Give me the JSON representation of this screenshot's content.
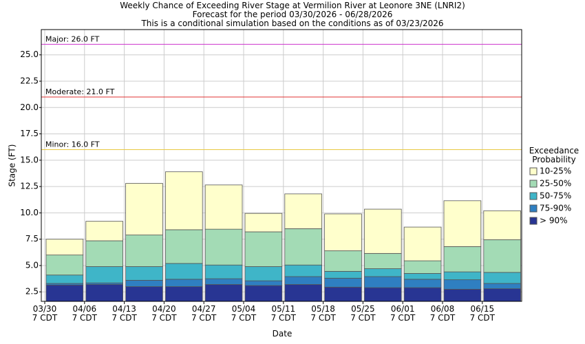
{
  "chart_data": {
    "type": "bar",
    "title": "Weekly Chance of Exceeding River Stage at Vermilion River at Leonore 3NE (LNRI2)",
    "subtitle": "Forecast for the period 03/30/2026 - 06/28/2026",
    "note": "This is a conditional simulation based on the conditions as of 03/23/2026",
    "x_label": "Date",
    "y_label": "Stage (FT)",
    "legend_title": "Exceedance\nProbability",
    "categories": [
      "03/30\n7 CDT",
      "04/06\n7 CDT",
      "04/13\n7 CDT",
      "04/20\n7 CDT",
      "04/27\n7 CDT",
      "05/04\n7 CDT",
      "05/11\n7 CDT",
      "05/18\n7 CDT",
      "05/25\n7 CDT",
      "06/01\n7 CDT",
      "06/08\n7 CDT",
      "06/15\n7 CDT"
    ],
    "series": [
      {
        "name": "> 90%",
        "color": "#283593",
        "values": [
          3.15,
          3.2,
          3.0,
          3.0,
          3.2,
          3.1,
          3.2,
          2.95,
          2.9,
          2.9,
          2.75,
          2.8
        ]
      },
      {
        "name": "75-90%",
        "color": "#2f7fc1",
        "values": [
          3.3,
          3.35,
          3.6,
          3.7,
          3.75,
          3.55,
          3.95,
          3.8,
          3.95,
          3.7,
          3.65,
          3.3
        ]
      },
      {
        "name": "50-75%",
        "color": "#3fb5c8",
        "values": [
          4.1,
          4.9,
          4.9,
          5.2,
          5.05,
          4.9,
          5.05,
          4.45,
          4.7,
          4.25,
          4.4,
          4.35
        ]
      },
      {
        "name": "25-50%",
        "color": "#a3dbb5",
        "values": [
          6.0,
          7.35,
          7.9,
          8.4,
          8.45,
          8.2,
          8.5,
          6.4,
          6.15,
          5.45,
          6.8,
          7.45
        ]
      },
      {
        "name": "10-25%",
        "color": "#ffffcc",
        "values": [
          7.5,
          9.2,
          12.8,
          13.9,
          12.65,
          9.95,
          11.8,
          9.9,
          10.35,
          8.65,
          11.15,
          10.2
        ]
      }
    ],
    "thresholds": [
      {
        "label": "Major: 26.0 FT",
        "value": 26.0,
        "color": "#cc33cc"
      },
      {
        "label": "Moderate: 21.0 FT",
        "value": 21.0,
        "color": "#e03030"
      },
      {
        "label": "Minor: 16.0 FT",
        "value": 16.0,
        "color": "#e8c840"
      }
    ],
    "ylim": [
      1.6,
      27.4
    ],
    "yticks": [
      2.5,
      {
        "value": 5,
        "label": "5.0"
      },
      7.5,
      {
        "value": 10,
        "label": "10.0"
      },
      12.5,
      {
        "value": 15,
        "label": "15.0"
      },
      17.5,
      {
        "value": 20,
        "label": "20.0"
      },
      22.5,
      {
        "value": 25,
        "label": "25.0"
      }
    ],
    "grid": true
  }
}
